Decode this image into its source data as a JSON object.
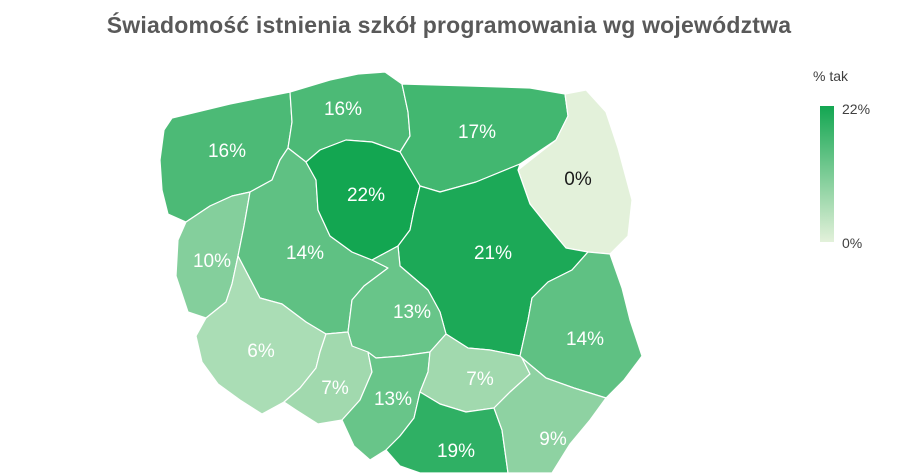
{
  "title": "Świadomość istnienia szkół programowania wg województwa",
  "legend": {
    "title": "% tak",
    "max_label": "22%",
    "min_label": "0%",
    "max": 22,
    "min": 0,
    "color_max": "#13a651",
    "color_min": "#e3f1da"
  },
  "regions": [
    {
      "id": "zachodniopomorskie",
      "value": 16,
      "label": "16%"
    },
    {
      "id": "pomorskie",
      "value": 16,
      "label": "16%"
    },
    {
      "id": "warminsko-mazurskie",
      "value": 17,
      "label": "17%"
    },
    {
      "id": "podlaskie",
      "value": 0,
      "label": "0%"
    },
    {
      "id": "lubuskie",
      "value": 10,
      "label": "10%"
    },
    {
      "id": "wielkopolskie",
      "value": 14,
      "label": "14%"
    },
    {
      "id": "kujawsko-pomorskie",
      "value": 22,
      "label": "22%"
    },
    {
      "id": "mazowieckie",
      "value": 21,
      "label": "21%"
    },
    {
      "id": "lodzkie",
      "value": 13,
      "label": "13%"
    },
    {
      "id": "lubelskie",
      "value": 14,
      "label": "14%"
    },
    {
      "id": "dolnoslaskie",
      "value": 6,
      "label": "6%"
    },
    {
      "id": "opolskie",
      "value": 7,
      "label": "7%"
    },
    {
      "id": "slaskie",
      "value": 13,
      "label": "13%"
    },
    {
      "id": "swietokrzyskie",
      "value": 7,
      "label": "7%"
    },
    {
      "id": "malopolskie",
      "value": 19,
      "label": "19%"
    },
    {
      "id": "podkarpackie",
      "value": 9,
      "label": "9%"
    }
  ]
}
